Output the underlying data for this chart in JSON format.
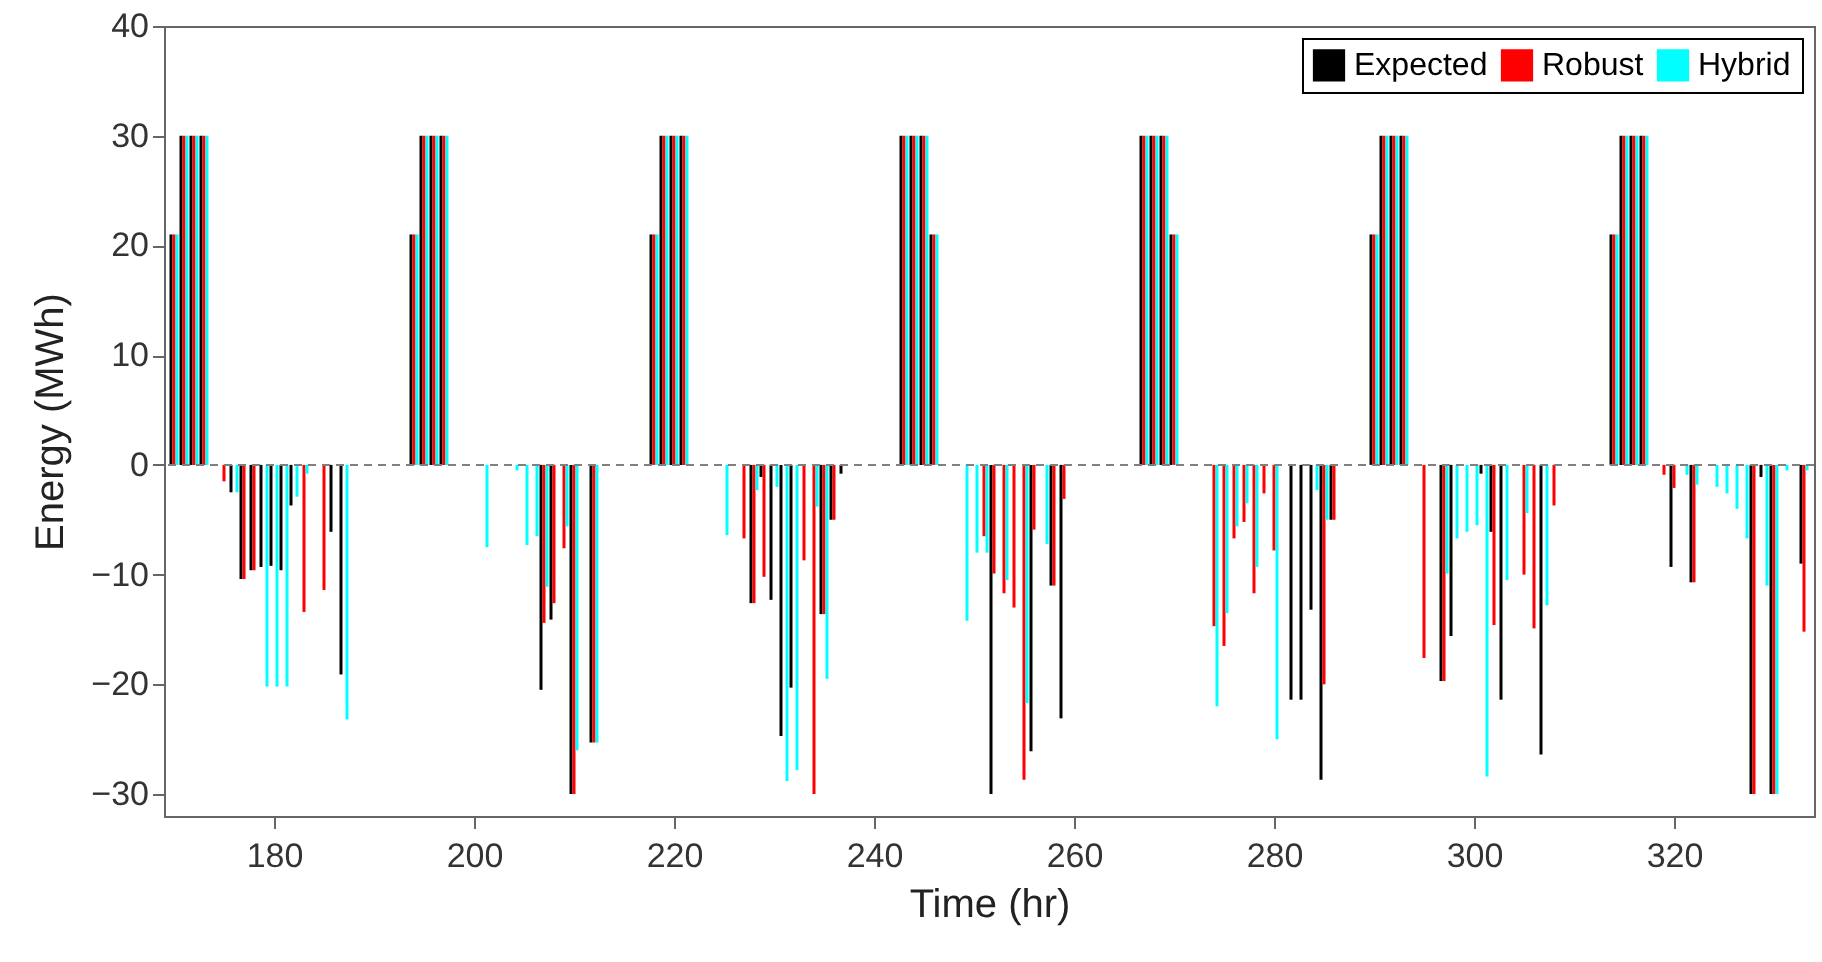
{
  "chart_data": {
    "type": "bar",
    "xlabel": "Time (hr)",
    "ylabel": "Energy (MWh)",
    "x": [
      170,
      171,
      172,
      173,
      174,
      175,
      176,
      177,
      178,
      179,
      180,
      181,
      182,
      183,
      184,
      185,
      186,
      187,
      188,
      189,
      190,
      191,
      192,
      193,
      194,
      195,
      196,
      197,
      198,
      199,
      200,
      201,
      202,
      203,
      204,
      205,
      206,
      207,
      208,
      209,
      210,
      211,
      212,
      213,
      214,
      215,
      216,
      217,
      218,
      219,
      220,
      221,
      222,
      223,
      224,
      225,
      226,
      227,
      228,
      229,
      230,
      231,
      232,
      233,
      234,
      235,
      236,
      237,
      238,
      239,
      240,
      241,
      242,
      243,
      244,
      245,
      246,
      247,
      248,
      249,
      250,
      251,
      252,
      253,
      254,
      255,
      256,
      257,
      258,
      259,
      260,
      261,
      262,
      263,
      264,
      265,
      266,
      267,
      268,
      269,
      270,
      271,
      272,
      273,
      274,
      275,
      276,
      277,
      278,
      279,
      280,
      281,
      282,
      283,
      284,
      285,
      286,
      287,
      288,
      289,
      290,
      291,
      292,
      293,
      294,
      295,
      296,
      297,
      298,
      299,
      300,
      301,
      302,
      303,
      304,
      305,
      306,
      307,
      308,
      309,
      310,
      311,
      312,
      313,
      314,
      315,
      316,
      317,
      318,
      319,
      320,
      321,
      322,
      323,
      324,
      325,
      326,
      327,
      328,
      329,
      330,
      331,
      332,
      333
    ],
    "xlim": [
      169,
      334
    ],
    "xticks": [
      180,
      200,
      220,
      240,
      260,
      280,
      300,
      320
    ],
    "ylim": [
      -32,
      40
    ],
    "yticks": [
      -30,
      -20,
      -10,
      0,
      10,
      20,
      30,
      40
    ],
    "legend": "top right",
    "ref_lines": [
      {
        "axis": "y",
        "value": 0,
        "line_style": "dashed",
        "color": "#808080"
      }
    ],
    "series": [
      {
        "name": "Expected",
        "color": "#000000",
        "values": [
          21,
          30,
          30,
          30,
          0,
          0,
          -2.5,
          -10.4,
          -9.6,
          -9.3,
          -9.2,
          -9.6,
          -3.7,
          0,
          0,
          0,
          -6.1,
          -19.1,
          0,
          0,
          0,
          0,
          0,
          0,
          21,
          30,
          30,
          30,
          0,
          0,
          0,
          0,
          0,
          0,
          0,
          0,
          0,
          -20.5,
          -14.1,
          0,
          -30,
          0,
          -25.3,
          0,
          0,
          0,
          0,
          0,
          21,
          30,
          30,
          30,
          0,
          0,
          0,
          0,
          0,
          0,
          -12.6,
          -1.1,
          -12.3,
          -24.7,
          -20.3,
          0,
          0,
          -13.6,
          -5,
          -0.8,
          0,
          0,
          0,
          0,
          0,
          30,
          30,
          30,
          21,
          0,
          0,
          0,
          0,
          0,
          -30,
          0,
          0,
          0,
          -26.1,
          0,
          -11,
          -23.1,
          0,
          0,
          0,
          0,
          0,
          0,
          0,
          30,
          30,
          30,
          21,
          0,
          0,
          0,
          0,
          0,
          0,
          0,
          0,
          0,
          0,
          0,
          -21.4,
          -21.4,
          -13.2,
          -28.7,
          -5,
          0,
          0,
          0,
          21,
          30,
          30,
          30,
          0,
          0,
          0,
          -19.7,
          -15.6,
          0,
          0,
          -0.8,
          -6.1,
          -21.4,
          0,
          0,
          0,
          -26.4,
          0,
          0,
          0,
          0,
          0,
          0,
          21,
          30,
          30,
          30,
          0,
          0,
          -9.3,
          0,
          -10.7,
          0,
          0,
          0,
          0,
          0,
          -30,
          -1.1,
          -30,
          0,
          0,
          -9
        ]
      },
      {
        "name": "Robust",
        "color": "#ff0000",
        "values": [
          21,
          30,
          30,
          30,
          0,
          -1.5,
          0,
          -10.4,
          -9.6,
          0,
          0,
          0,
          0,
          -13.4,
          0,
          -11.4,
          0,
          0,
          0,
          0,
          0,
          0,
          0,
          0,
          21,
          30,
          30,
          30,
          0,
          0,
          0,
          0,
          0,
          0,
          0,
          0,
          0,
          -14.4,
          -12.6,
          -7.6,
          -30,
          0,
          -25.3,
          0,
          0,
          0,
          0,
          0,
          21,
          30,
          30,
          30,
          0,
          0,
          0,
          0,
          0,
          -6.7,
          -12.6,
          -10.2,
          0,
          0,
          0,
          -8.7,
          -30,
          -13.6,
          -5,
          0,
          0,
          0,
          0,
          0,
          0,
          30,
          30,
          30,
          21,
          0,
          0,
          0,
          0,
          -6.5,
          -9.9,
          -11.7,
          -13,
          -28.7,
          -5.9,
          0,
          -11,
          -3.1,
          0,
          0,
          0,
          0,
          0,
          0,
          0,
          30,
          30,
          30,
          21,
          0,
          0,
          0,
          -14.7,
          -16.5,
          -6.7,
          -5.2,
          -11.7,
          -2.6,
          -7.8,
          0,
          0,
          0,
          0,
          -20,
          -5,
          0,
          0,
          0,
          21,
          30,
          30,
          30,
          0,
          -17.6,
          0,
          -19.7,
          0,
          0,
          0,
          0,
          -14.6,
          0,
          0,
          -10,
          -14.9,
          0,
          -3.7,
          0,
          0,
          0,
          0,
          0,
          21,
          30,
          30,
          30,
          0,
          -0.9,
          -2.1,
          0,
          -10.7,
          0,
          0,
          0,
          0,
          0,
          -30,
          0,
          -30,
          0,
          0,
          -15.2
        ]
      },
      {
        "name": "Hybrid",
        "color": "#00ffff",
        "values": [
          21,
          30,
          30,
          30,
          0,
          0,
          -2.5,
          0,
          0,
          -20.2,
          -20.2,
          -20.2,
          -2.9,
          -0.8,
          0,
          0,
          0,
          -23.2,
          0,
          0,
          0,
          0,
          0,
          0,
          21,
          30,
          30,
          30,
          0,
          0,
          0,
          -7.5,
          0,
          0,
          -0.5,
          -7.3,
          -6.5,
          -11.1,
          0,
          -5.6,
          -26,
          0,
          -25.3,
          0,
          0,
          0,
          0,
          0,
          21,
          30,
          30,
          30,
          0,
          0,
          0,
          -6.4,
          0,
          0,
          -2.3,
          0,
          -2,
          -28.8,
          -27.8,
          0,
          -3.8,
          -19.5,
          0,
          0,
          0,
          0,
          0,
          0,
          0,
          30,
          30,
          30,
          21,
          0,
          0,
          -14.2,
          -8,
          -8,
          0,
          -10.5,
          0,
          -21.7,
          0,
          -7.2,
          0,
          0,
          0,
          0,
          0,
          0,
          0,
          0,
          0,
          30,
          30,
          30,
          21,
          0,
          0,
          0,
          -22,
          -13.5,
          -5.6,
          -3.5,
          -9.3,
          0,
          -25,
          0,
          0,
          0,
          -2.3,
          -5,
          0,
          0,
          0,
          0,
          21,
          30,
          30,
          30,
          0,
          0,
          0,
          -9.9,
          -6.7,
          -6.1,
          -5.5,
          -28.4,
          0,
          -10.5,
          0,
          -4.4,
          0,
          -12.8,
          0,
          0,
          0,
          0,
          0,
          0,
          21,
          30,
          30,
          30,
          0,
          0,
          0,
          -0.9,
          -1.8,
          0,
          -2,
          -2.6,
          -4,
          -6.7,
          0,
          -11,
          -30,
          -0.5,
          0,
          -0.5
        ]
      }
    ]
  }
}
